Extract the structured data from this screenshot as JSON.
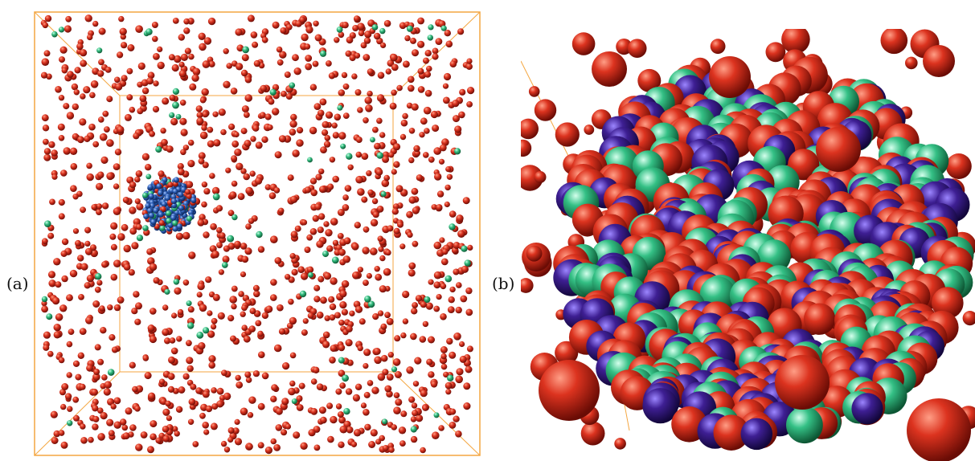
{
  "figure": {
    "panels": [
      {
        "id": "a",
        "label": "(a)"
      },
      {
        "id": "b",
        "label": "(b)"
      }
    ]
  },
  "colors": {
    "box_edge": "#f4a640",
    "red_atom": "#c8281a",
    "green_atom": "#2fb87a",
    "blue_atom": "#2a5bb0",
    "indigo_atom": "#3a1d8a",
    "background": "#ffffff"
  }
}
